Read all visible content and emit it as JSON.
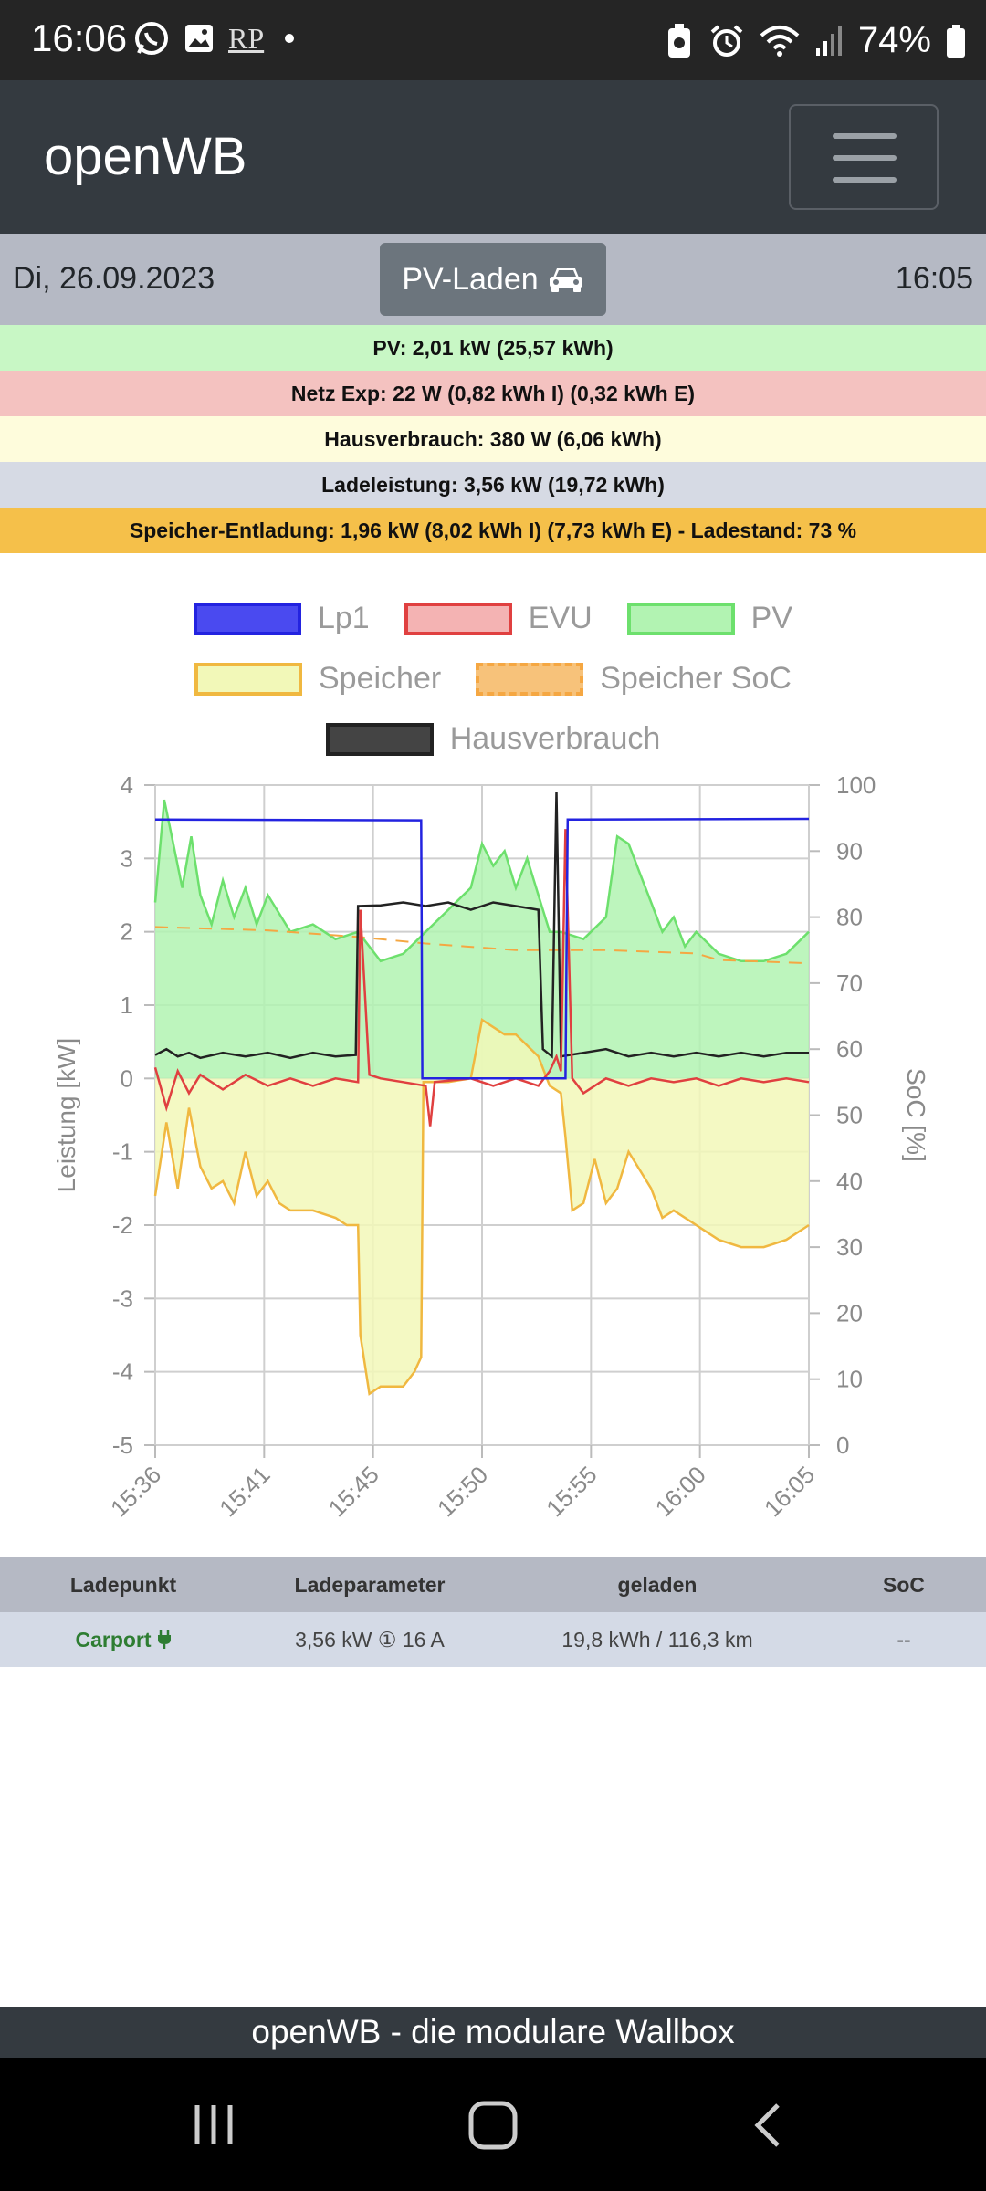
{
  "status_bar": {
    "time": "16:06",
    "left_icons": [
      "whatsapp-icon",
      "gallery-icon",
      "rp-icon",
      "dot-icon"
    ],
    "rp_text": "RP",
    "right_icons": [
      "battery-saver-icon",
      "alarm-icon",
      "wifi-icon",
      "signal-icon",
      "battery-icon"
    ],
    "battery": "74%"
  },
  "navbar": {
    "brand": "openWB",
    "menu_icon": "hamburger-icon"
  },
  "datebar": {
    "date": "Di, 26.09.2023",
    "mode_button": "PV-Laden",
    "mode_icon": "car-icon",
    "time": "16:05"
  },
  "info_rows": [
    {
      "text": "PV: 2,01 kW (25,57 kWh)",
      "bg": "#c8f7c5"
    },
    {
      "text": "Netz Exp: 22 W (0,82 kWh I) (0,32 kWh E)",
      "bg": "#f4c2c0"
    },
    {
      "text": "Hausverbrauch: 380 W (6,06 kWh)",
      "bg": "#fefcdc"
    },
    {
      "text": "Ladeleistung: 3,56 kW (19,72 kWh)",
      "bg": "#d6dae4"
    },
    {
      "text": "Speicher-Entladung: 1,96 kW (8,02 kWh I) (7,73 kWh E) - Ladestand: 73 %",
      "bg": "#f5c04a"
    }
  ],
  "chart_data": {
    "type": "line",
    "legend": [
      {
        "name": "Lp1",
        "stroke": "#2323e0",
        "fill": "#4a4af0"
      },
      {
        "name": "EVU",
        "stroke": "#e04040",
        "fill": "#f4b3b3"
      },
      {
        "name": "PV",
        "stroke": "#6de06d",
        "fill": "#b2f3b2"
      },
      {
        "name": "Speicher",
        "stroke": "#f0b840",
        "fill": "#f2f8b8"
      },
      {
        "name": "Speicher SoC",
        "stroke": "#f5a742",
        "fill": "#f7c27a",
        "dashed": true
      },
      {
        "name": "Hausverbrauch",
        "stroke": "#222222",
        "fill": "#444444"
      }
    ],
    "x_ticks": [
      "15:36",
      "15:41",
      "15:45",
      "15:50",
      "15:55",
      "16:00",
      "16:05"
    ],
    "ylabel": "Leistung [kW]",
    "ylim": [
      -5,
      4
    ],
    "y_ticks": [
      "4",
      "3",
      "2",
      "1",
      "0",
      "-1",
      "-2",
      "-3",
      "-4",
      "-5"
    ],
    "y2label": "SoC [%]",
    "y2lim": [
      0,
      100
    ],
    "y2_ticks": [
      "100",
      "90",
      "80",
      "70",
      "60",
      "50",
      "40",
      "30",
      "20",
      "10",
      "0"
    ],
    "x_range_min": [
      0,
      29
    ],
    "series": [
      {
        "name": "Lp1",
        "points": [
          [
            0,
            3.53
          ],
          [
            11.8,
            3.52
          ],
          [
            11.85,
            0
          ],
          [
            18.2,
            0
          ],
          [
            18.3,
            3.53
          ],
          [
            29,
            3.54
          ]
        ]
      },
      {
        "name": "EVU",
        "points": [
          [
            0,
            0.15
          ],
          [
            0.5,
            -0.4
          ],
          [
            1,
            0.1
          ],
          [
            1.5,
            -0.2
          ],
          [
            2,
            0.05
          ],
          [
            3,
            -0.15
          ],
          [
            4,
            0.05
          ],
          [
            5,
            -0.1
          ],
          [
            6,
            0
          ],
          [
            7,
            -0.1
          ],
          [
            8,
            0
          ],
          [
            9,
            -0.05
          ],
          [
            9.1,
            2.3
          ],
          [
            9.5,
            0.05
          ],
          [
            10,
            0
          ],
          [
            11,
            -0.05
          ],
          [
            12,
            -0.1
          ],
          [
            12.2,
            -0.65
          ],
          [
            12.4,
            -0.05
          ],
          [
            14,
            0
          ],
          [
            15,
            -0.1
          ],
          [
            16,
            0
          ],
          [
            17,
            -0.1
          ],
          [
            17.5,
            0.1
          ],
          [
            17.8,
            0.3
          ],
          [
            18,
            0.1
          ],
          [
            18.2,
            3.4
          ],
          [
            18.5,
            0
          ],
          [
            19,
            -0.2
          ],
          [
            20,
            0
          ],
          [
            21,
            -0.1
          ],
          [
            22,
            0
          ],
          [
            23,
            -0.05
          ],
          [
            24,
            0
          ],
          [
            25,
            -0.1
          ],
          [
            26,
            0
          ],
          [
            27,
            -0.05
          ],
          [
            28,
            0
          ],
          [
            29,
            -0.05
          ]
        ]
      },
      {
        "name": "PV",
        "points": [
          [
            0,
            2.4
          ],
          [
            0.4,
            3.8
          ],
          [
            0.8,
            3.2
          ],
          [
            1.2,
            2.6
          ],
          [
            1.6,
            3.3
          ],
          [
            2,
            2.5
          ],
          [
            2.5,
            2.1
          ],
          [
            3,
            2.7
          ],
          [
            3.5,
            2.2
          ],
          [
            4,
            2.6
          ],
          [
            4.5,
            2.1
          ],
          [
            5,
            2.5
          ],
          [
            6,
            2.0
          ],
          [
            7,
            2.1
          ],
          [
            8,
            1.9
          ],
          [
            9,
            2.0
          ],
          [
            10,
            1.6
          ],
          [
            11,
            1.7
          ],
          [
            12,
            2.0
          ],
          [
            13,
            2.3
          ],
          [
            14,
            2.6
          ],
          [
            14.5,
            3.2
          ],
          [
            15,
            2.9
          ],
          [
            15.5,
            3.1
          ],
          [
            16,
            2.6
          ],
          [
            16.5,
            3.0
          ],
          [
            17,
            2.5
          ],
          [
            17.5,
            2.0
          ],
          [
            18,
            2.0
          ],
          [
            19,
            1.9
          ],
          [
            20,
            2.2
          ],
          [
            20.5,
            3.3
          ],
          [
            21,
            3.2
          ],
          [
            21.5,
            2.8
          ],
          [
            22,
            2.4
          ],
          [
            22.5,
            2.0
          ],
          [
            23,
            2.2
          ],
          [
            23.5,
            1.8
          ],
          [
            24,
            2.0
          ],
          [
            25,
            1.7
          ],
          [
            26,
            1.6
          ],
          [
            27,
            1.6
          ],
          [
            28,
            1.7
          ],
          [
            29,
            2.0
          ]
        ]
      },
      {
        "name": "Speicher",
        "points": [
          [
            0,
            -1.6
          ],
          [
            0.5,
            -0.6
          ],
          [
            1,
            -1.5
          ],
          [
            1.5,
            -0.4
          ],
          [
            2,
            -1.2
          ],
          [
            2.5,
            -1.5
          ],
          [
            3,
            -1.4
          ],
          [
            3.5,
            -1.7
          ],
          [
            4,
            -1.0
          ],
          [
            4.5,
            -1.6
          ],
          [
            5,
            -1.4
          ],
          [
            5.5,
            -1.7
          ],
          [
            6,
            -1.8
          ],
          [
            7,
            -1.8
          ],
          [
            8,
            -1.9
          ],
          [
            8.5,
            -2.0
          ],
          [
            9,
            -2.0
          ],
          [
            9.1,
            -3.5
          ],
          [
            9.5,
            -4.3
          ],
          [
            10,
            -4.2
          ],
          [
            11,
            -4.2
          ],
          [
            11.5,
            -4.0
          ],
          [
            11.8,
            -3.8
          ],
          [
            11.9,
            -0.05
          ],
          [
            13,
            -0.05
          ],
          [
            14,
            0.0
          ],
          [
            14.5,
            0.8
          ],
          [
            15,
            0.7
          ],
          [
            15.5,
            0.6
          ],
          [
            16,
            0.6
          ],
          [
            17,
            0.3
          ],
          [
            17.5,
            -0.1
          ],
          [
            18,
            -0.2
          ],
          [
            18.2,
            -0.8
          ],
          [
            18.5,
            -1.8
          ],
          [
            19,
            -1.7
          ],
          [
            19.5,
            -1.1
          ],
          [
            20,
            -1.7
          ],
          [
            20.5,
            -1.5
          ],
          [
            21,
            -1.0
          ],
          [
            22,
            -1.5
          ],
          [
            22.5,
            -1.9
          ],
          [
            23,
            -1.8
          ],
          [
            24,
            -2.0
          ],
          [
            25,
            -2.2
          ],
          [
            26,
            -2.3
          ],
          [
            27,
            -2.3
          ],
          [
            28,
            -2.2
          ],
          [
            29,
            -2.0
          ]
        ]
      },
      {
        "name": "Speicher SoC",
        "points": [
          [
            0,
            78.5
          ],
          [
            5,
            78
          ],
          [
            9,
            77
          ],
          [
            12,
            76
          ],
          [
            16,
            75
          ],
          [
            20,
            75
          ],
          [
            24,
            74.5
          ],
          [
            25,
            73.5
          ],
          [
            29,
            73
          ]
        ]
      },
      {
        "name": "Hausverbrauch",
        "points": [
          [
            0,
            0.32
          ],
          [
            0.5,
            0.4
          ],
          [
            1,
            0.3
          ],
          [
            1.5,
            0.35
          ],
          [
            2,
            0.28
          ],
          [
            3,
            0.35
          ],
          [
            4,
            0.3
          ],
          [
            5,
            0.35
          ],
          [
            6,
            0.28
          ],
          [
            7,
            0.35
          ],
          [
            8,
            0.3
          ],
          [
            8.9,
            0.32
          ],
          [
            9.0,
            2.35
          ],
          [
            10,
            2.36
          ],
          [
            11,
            2.4
          ],
          [
            12,
            2.35
          ],
          [
            13,
            2.4
          ],
          [
            14,
            2.3
          ],
          [
            15,
            2.4
          ],
          [
            16,
            2.35
          ],
          [
            17,
            2.3
          ],
          [
            17.2,
            0.4
          ],
          [
            17.6,
            0.3
          ],
          [
            17.8,
            3.9
          ],
          [
            18,
            0.3
          ],
          [
            19,
            0.35
          ],
          [
            20,
            0.4
          ],
          [
            21,
            0.3
          ],
          [
            22,
            0.35
          ],
          [
            23,
            0.3
          ],
          [
            24,
            0.35
          ],
          [
            25,
            0.3
          ],
          [
            26,
            0.35
          ],
          [
            27,
            0.3
          ],
          [
            28,
            0.35
          ],
          [
            29,
            0.35
          ]
        ]
      }
    ]
  },
  "table": {
    "headers": [
      "Ladepunkt",
      "Ladeparameter",
      "geladen",
      "SoC"
    ],
    "row": {
      "ladepunkt": "Carport",
      "ladepunkt_icon": "plug-icon",
      "parameter": "3,56 kW ① 16 A",
      "geladen": "19,8 kWh / 116,3 km",
      "soc": "--"
    }
  },
  "footer": {
    "text": "openWB - die modulare Wallbox"
  },
  "system_nav": {
    "icons": [
      "recent-apps-icon",
      "home-icon",
      "back-icon"
    ]
  }
}
